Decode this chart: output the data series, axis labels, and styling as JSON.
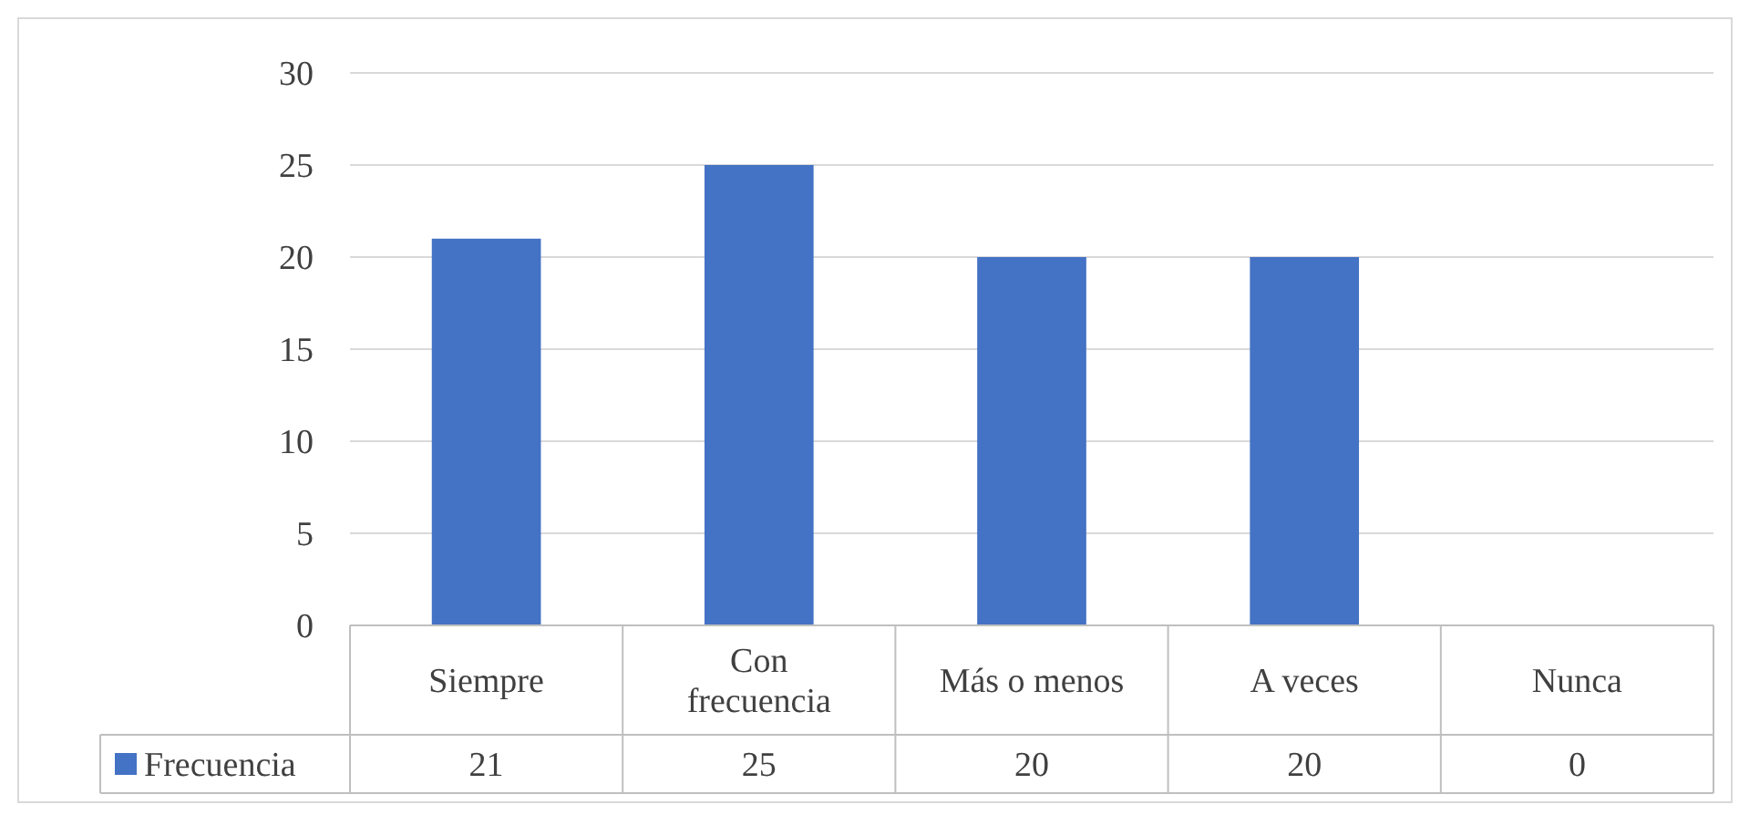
{
  "chart_data": {
    "type": "bar",
    "categories": [
      "Siempre",
      "Con frecuencia",
      "Más o menos",
      "A veces",
      "Nunca"
    ],
    "series": [
      {
        "name": "Frecuencia",
        "color": "#4472c4",
        "values": [
          21,
          25,
          20,
          20,
          0
        ]
      }
    ],
    "ylim": [
      0,
      30
    ],
    "yticks": [
      0,
      5,
      10,
      15,
      20,
      25,
      30
    ],
    "grid": "y",
    "data_labels": true,
    "legend": "bottom"
  }
}
